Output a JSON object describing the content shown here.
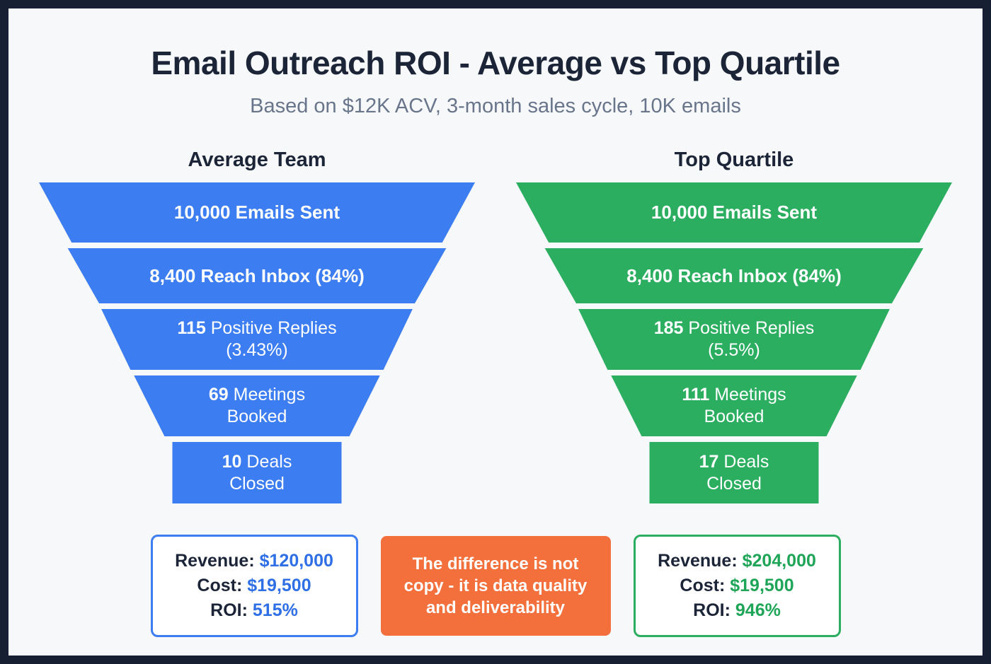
{
  "title": "Email Outreach ROI - Average vs Top Quartile",
  "subtitle": "Based on $12K ACV, 3-month sales cycle, 10K emails",
  "colors": {
    "blue": "#3c7df1",
    "green": "#2cae61",
    "orange": "#f3703c",
    "navy": "#1b2537"
  },
  "funnels": [
    {
      "name": "Average Team",
      "rows": [
        {
          "bold": "10,000 Emails Sent",
          "text": "",
          "line2": ""
        },
        {
          "bold": "8,400 Reach Inbox (84%)",
          "text": "",
          "line2": ""
        },
        {
          "bold": "115",
          "text": " Positive Replies",
          "line2": "(3.43%)"
        },
        {
          "bold": "69",
          "text": " Meetings",
          "line2": "Booked"
        },
        {
          "bold": "10",
          "text": " Deals",
          "line2": "Closed"
        }
      ],
      "stats": {
        "revenue_label": "Revenue:",
        "revenue_value": "$120,000",
        "cost_label": "Cost:",
        "cost_value": "$19,500",
        "roi_label": "ROI:",
        "roi_value": "515%"
      }
    },
    {
      "name": "Top Quartile",
      "rows": [
        {
          "bold": "10,000 Emails Sent",
          "text": "",
          "line2": ""
        },
        {
          "bold": "8,400 Reach Inbox (84%)",
          "text": "",
          "line2": ""
        },
        {
          "bold": "185",
          "text": " Positive Replies",
          "line2": "(5.5%)"
        },
        {
          "bold": "111",
          "text": " Meetings",
          "line2": "Booked"
        },
        {
          "bold": "17",
          "text": " Deals",
          "line2": "Closed"
        }
      ],
      "stats": {
        "revenue_label": "Revenue:",
        "revenue_value": "$204,000",
        "cost_label": "Cost:",
        "cost_value": "$19,500",
        "roi_label": "ROI:",
        "roi_value": "946%"
      }
    }
  ],
  "callout": {
    "text": "The difference is not copy - it is data quality and deliverability"
  },
  "chart_data": {
    "type": "funnel",
    "title": "Email Outreach ROI - Average vs Top Quartile",
    "subtitle": "Based on $12K ACV, 3-month sales cycle, 10K emails",
    "stages": [
      "Emails Sent",
      "Reach Inbox",
      "Positive Replies",
      "Meetings Booked",
      "Deals Closed"
    ],
    "series": [
      {
        "name": "Average Team",
        "color": "#3c7df1",
        "values": [
          10000,
          8400,
          115,
          69,
          10
        ],
        "stage_rates": [
          null,
          "84%",
          "3.43%",
          null,
          null
        ],
        "revenue": 120000,
        "cost": 19500,
        "roi_percent": 515
      },
      {
        "name": "Top Quartile",
        "color": "#2cae61",
        "values": [
          10000,
          8400,
          185,
          111,
          17
        ],
        "stage_rates": [
          null,
          "84%",
          "5.5%",
          null,
          null
        ],
        "revenue": 204000,
        "cost": 19500,
        "roi_percent": 946
      }
    ],
    "annotation": "The difference is not copy - it is data quality and deliverability",
    "legend_position": "none",
    "grid": false
  }
}
